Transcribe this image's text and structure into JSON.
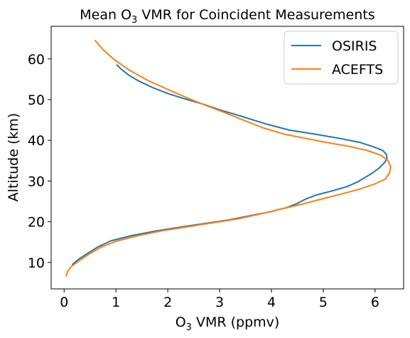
{
  "chart_data": {
    "type": "line",
    "title": {
      "prefix": "Mean O",
      "subscript": "3",
      "suffix": " VMR for Coincident Measurements"
    },
    "xlabel": {
      "prefix": "O",
      "subscript": "3",
      "suffix": " VMR (ppmv)"
    },
    "ylabel": "Altitude (km)",
    "xlim": [
      -0.25,
      6.55
    ],
    "ylim": [
      3.5,
      68
    ],
    "xticks": [
      0,
      1,
      2,
      3,
      4,
      5,
      6
    ],
    "xtick_labels": [
      "0",
      "1",
      "2",
      "3",
      "4",
      "5",
      "6"
    ],
    "yticks": [
      10,
      20,
      30,
      40,
      50,
      60
    ],
    "ytick_labels": [
      "10",
      "20",
      "30",
      "40",
      "50",
      "60"
    ],
    "grid": false,
    "legend_position": "top-right",
    "series": [
      {
        "name": "OSIRIS",
        "color": "#1f77b4",
        "points": [
          [
            0.16,
            9.5
          ],
          [
            0.28,
            10.8
          ],
          [
            0.45,
            12.2
          ],
          [
            0.65,
            13.8
          ],
          [
            0.9,
            15.3
          ],
          [
            1.3,
            16.6
          ],
          [
            1.8,
            17.8
          ],
          [
            2.3,
            18.8
          ],
          [
            2.8,
            19.7
          ],
          [
            3.2,
            20.5
          ],
          [
            3.6,
            21.5
          ],
          [
            4.0,
            22.5
          ],
          [
            4.3,
            23.5
          ],
          [
            4.5,
            24.5
          ],
          [
            4.65,
            25.5
          ],
          [
            4.85,
            26.5
          ],
          [
            5.15,
            27.5
          ],
          [
            5.45,
            28.6
          ],
          [
            5.65,
            29.7
          ],
          [
            5.8,
            30.8
          ],
          [
            5.95,
            32.0
          ],
          [
            6.08,
            33.2
          ],
          [
            6.18,
            34.5
          ],
          [
            6.23,
            35.5
          ],
          [
            6.22,
            36.5
          ],
          [
            6.15,
            37.5
          ],
          [
            5.95,
            38.5
          ],
          [
            5.7,
            39.5
          ],
          [
            5.3,
            40.5
          ],
          [
            4.85,
            41.5
          ],
          [
            4.35,
            42.5
          ],
          [
            3.9,
            44.0
          ],
          [
            3.4,
            46.0
          ],
          [
            3.0,
            47.5
          ],
          [
            2.7,
            48.8
          ],
          [
            2.3,
            50.3
          ],
          [
            2.0,
            51.5
          ],
          [
            1.7,
            53.0
          ],
          [
            1.45,
            54.5
          ],
          [
            1.25,
            56.0
          ],
          [
            1.1,
            57.5
          ],
          [
            1.02,
            58.5
          ]
        ]
      },
      {
        "name": "ACEFTS",
        "color": "#ff7f0e",
        "points": [
          [
            0.04,
            6.7
          ],
          [
            0.07,
            7.8
          ],
          [
            0.14,
            9.0
          ],
          [
            0.3,
            10.5
          ],
          [
            0.5,
            12.2
          ],
          [
            0.72,
            13.8
          ],
          [
            1.0,
            15.2
          ],
          [
            1.4,
            16.5
          ],
          [
            1.9,
            17.8
          ],
          [
            2.4,
            18.8
          ],
          [
            2.9,
            19.8
          ],
          [
            3.35,
            20.7
          ],
          [
            3.75,
            21.8
          ],
          [
            4.15,
            23.0
          ],
          [
            4.55,
            24.2
          ],
          [
            4.95,
            25.5
          ],
          [
            5.35,
            26.8
          ],
          [
            5.7,
            28.0
          ],
          [
            6.0,
            29.3
          ],
          [
            6.2,
            30.5
          ],
          [
            6.28,
            32.0
          ],
          [
            6.3,
            33.5
          ],
          [
            6.25,
            35.0
          ],
          [
            6.12,
            36.3
          ],
          [
            5.85,
            37.5
          ],
          [
            5.5,
            38.5
          ],
          [
            5.05,
            39.5
          ],
          [
            4.65,
            40.5
          ],
          [
            4.25,
            41.5
          ],
          [
            3.85,
            43.0
          ],
          [
            3.45,
            45.0
          ],
          [
            3.1,
            46.8
          ],
          [
            2.75,
            48.5
          ],
          [
            2.4,
            50.3
          ],
          [
            2.0,
            52.5
          ],
          [
            1.6,
            54.8
          ],
          [
            1.25,
            57.3
          ],
          [
            0.95,
            60.0
          ],
          [
            0.75,
            62.3
          ],
          [
            0.6,
            64.5
          ]
        ]
      }
    ]
  }
}
